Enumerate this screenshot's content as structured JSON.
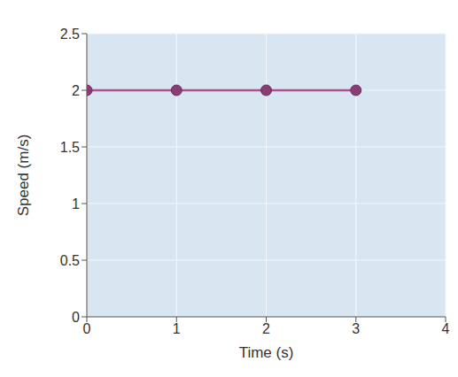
{
  "chart_data": {
    "type": "line",
    "x_label": "Time (s)",
    "y_label": "Speed (m/s)",
    "x": [
      0,
      1,
      2,
      3
    ],
    "values": [
      2,
      2,
      2,
      2
    ],
    "color": "#b0508f",
    "marker": "circle",
    "xlim": [
      0,
      4
    ],
    "xticks": [
      0,
      1,
      2,
      3,
      4
    ],
    "ylim": [
      0,
      2.5
    ],
    "yticks": [
      0,
      0.5,
      1,
      1.5,
      2,
      2.5
    ],
    "grid": true
  }
}
